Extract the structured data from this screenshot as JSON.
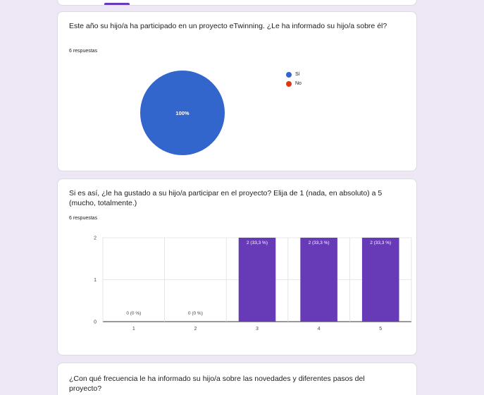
{
  "questions": [
    {
      "title": "Este año su hijo/a ha participado en un proyecto eTwinning. ¿Le ha informado su hijo/a sobre él?",
      "responses": "6 respuestas"
    },
    {
      "title": "Si es así, ¿le ha gustado a su hijo/a participar en el proyecto? Elija de 1 (nada, en absoluto) a 5 (mucho, totalmente.)",
      "responses": "6 respuestas"
    },
    {
      "title": "¿Con qué frecuencia le ha informado su hijo/a sobre las novedades y diferentes pasos del proyecto?"
    }
  ],
  "chart_data": [
    {
      "type": "pie",
      "slices": [
        {
          "label": "Sí",
          "value": 6,
          "percent_label": "100%",
          "color": "#3366cc"
        },
        {
          "label": "No",
          "value": 0,
          "percent_label": "",
          "color": "#dc3912"
        }
      ],
      "legend_position": "right"
    },
    {
      "type": "bar",
      "categories": [
        "1",
        "2",
        "3",
        "4",
        "5"
      ],
      "values": [
        0,
        0,
        2,
        2,
        2
      ],
      "data_labels": [
        "0 (0 %)",
        "0 (0 %)",
        "2 (33,3 %)",
        "2 (33,3 %)",
        "2 (33,3 %)"
      ],
      "y_ticks": [
        "0",
        "1",
        "2"
      ],
      "ylim": [
        0,
        2
      ],
      "color": "#673ab7",
      "grid": true
    }
  ]
}
